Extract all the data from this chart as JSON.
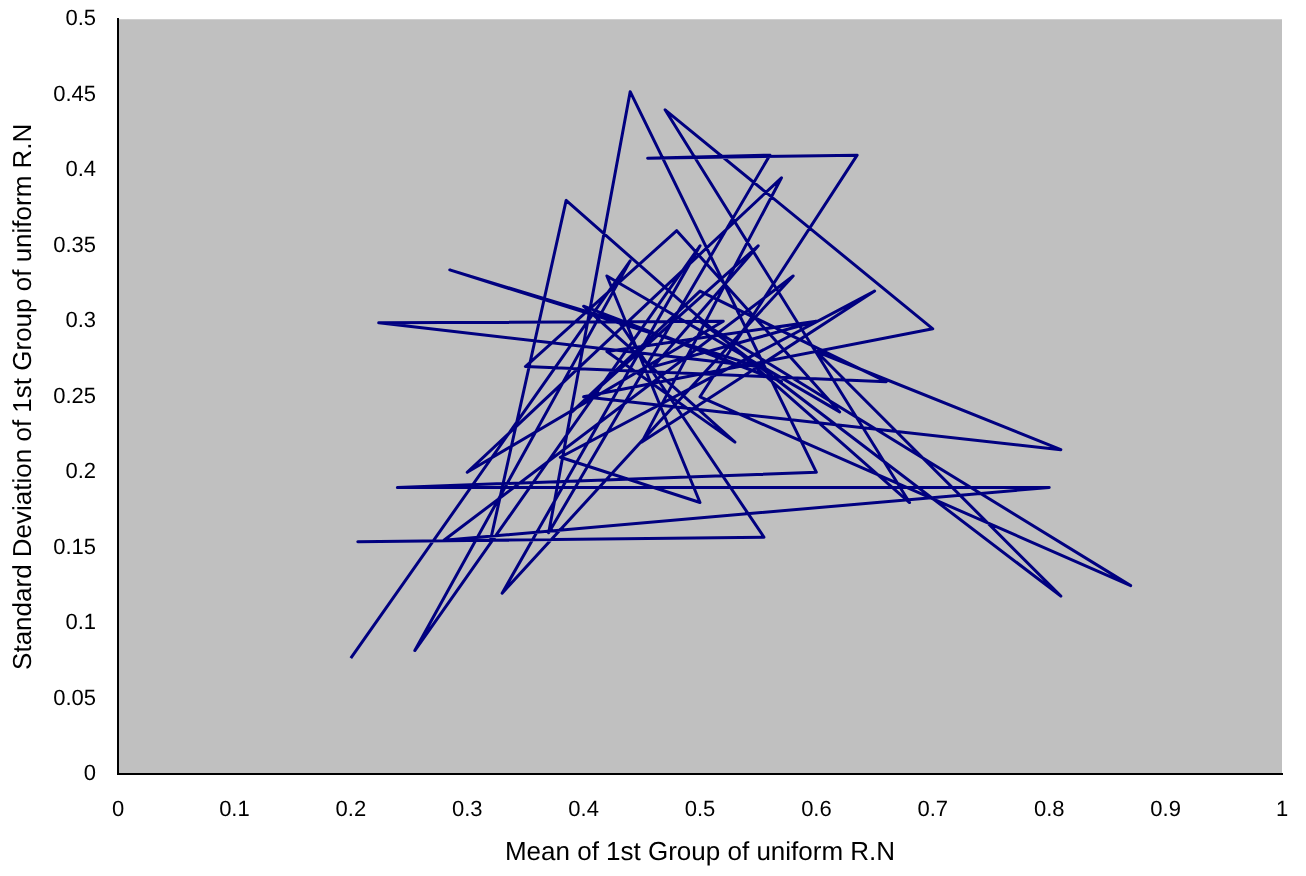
{
  "chart_data": {
    "type": "line",
    "xlabel": "Mean of 1st Group of uniform R.N",
    "ylabel": "Standard Deviation of 1st Group of uniform R.N",
    "x": [
      0.2,
      0.44,
      0.255,
      0.5,
      0.33,
      0.58,
      0.28,
      0.8,
      0.24,
      0.6,
      0.44,
      0.37,
      0.56,
      0.455,
      0.635,
      0.5,
      0.87,
      0.5,
      0.81,
      0.6,
      0.81,
      0.4,
      0.7,
      0.47,
      0.68,
      0.385,
      0.32,
      0.206,
      0.555,
      0.43,
      0.285,
      0.55,
      0.224,
      0.52,
      0.3,
      0.57,
      0.45,
      0.65,
      0.38,
      0.5,
      0.42,
      0.62,
      0.48,
      0.35,
      0.66,
      0.5,
      0.39,
      0.55,
      0.46,
      0.6,
      0.42,
      0.53,
      0.4,
      0.57,
      0.47
    ],
    "series": [
      {
        "color": "#000080",
        "values": [
          0.077,
          0.34,
          0.082,
          0.35,
          0.12,
          0.33,
          0.155,
          0.19,
          0.19,
          0.2,
          0.452,
          0.16,
          0.41,
          0.408,
          0.41,
          0.25,
          0.125,
          0.3,
          0.118,
          0.28,
          0.215,
          0.25,
          0.295,
          0.44,
          0.18,
          0.38,
          0.155,
          0.154,
          0.157,
          0.3,
          0.334,
          0.27,
          0.299,
          0.3,
          0.2,
          0.395,
          0.22,
          0.32,
          0.21,
          0.18,
          0.33,
          0.24,
          0.36,
          0.27,
          0.26,
          0.32,
          0.24,
          0.35,
          0.27,
          0.3,
          0.28,
          0.22,
          0.31,
          0.26,
          0.29
        ]
      }
    ],
    "xlim": [
      0,
      1
    ],
    "xticks": [
      0,
      0.1,
      0.2,
      0.3,
      0.4,
      0.5,
      0.6,
      0.7,
      0.8,
      0.9,
      1
    ],
    "ylim": [
      0,
      0.5
    ],
    "yticks": [
      0,
      0.05,
      0.1,
      0.15,
      0.2,
      0.25,
      0.3,
      0.35,
      0.4,
      0.45,
      0.5
    ],
    "grid": false,
    "legend": false,
    "marker": "none",
    "line_style": "solid"
  }
}
